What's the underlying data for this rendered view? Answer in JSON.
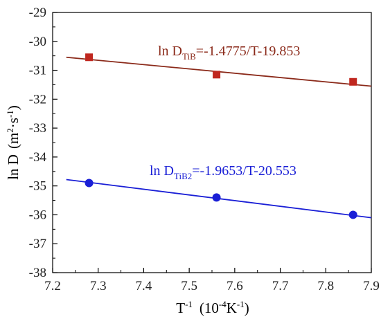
{
  "chart_data": {
    "type": "scatter",
    "title": "",
    "xlabel": {
      "base": "T",
      "sup": "-1",
      "units_pre": "(10",
      "units_sup": "-4",
      "units_post": "K",
      "units_sup2": "-1",
      "units_end": ")"
    },
    "ylabel": {
      "pre": "ln D",
      "units_pre": "(m",
      "units_sup": "2",
      "units_mid": "·s",
      "units_sup2": "-1",
      "units_end": ")"
    },
    "xlim": [
      7.2,
      7.9
    ],
    "ylim": [
      -38,
      -29
    ],
    "xticks": [
      7.2,
      7.3,
      7.4,
      7.5,
      7.6,
      7.7,
      7.8,
      7.9
    ],
    "xtick_labels": [
      "7.2",
      "7.3",
      "7.4",
      "7.5",
      "7.6",
      "7.7",
      "7.8",
      "7.9"
    ],
    "yticks": [
      -29,
      -30,
      -31,
      -32,
      -33,
      -34,
      -35,
      -36,
      -37,
      -38
    ],
    "ytick_labels": [
      "-29",
      "-30",
      "-31",
      "-32",
      "-33",
      "-34",
      "-35",
      "-36",
      "-37",
      "-38"
    ],
    "grid": false,
    "series": [
      {
        "name": "TiB",
        "marker": "square",
        "color": "#c0271f",
        "line_color": "#8b2a1a",
        "x": [
          7.28,
          7.56,
          7.86
        ],
        "y": [
          -30.55,
          -31.15,
          -31.4
        ],
        "fit_x": [
          7.23,
          7.9
        ],
        "fit_y": [
          -30.55,
          -31.55
        ]
      },
      {
        "name": "TiB2",
        "marker": "circle",
        "color": "#1a1fd6",
        "line_color": "#1a1fd6",
        "x": [
          7.28,
          7.56,
          7.86
        ],
        "y": [
          -34.9,
          -35.4,
          -36.0
        ],
        "fit_x": [
          7.23,
          7.9
        ],
        "fit_y": [
          -34.78,
          -36.1
        ]
      }
    ],
    "annotations": [
      {
        "series": "TiB",
        "pre": "ln D",
        "sub": "TiB",
        "post": "=-1.4775/T-19.853",
        "color": "#8b2a1a"
      },
      {
        "series": "TiB2",
        "pre": "ln D",
        "sub": "TiB2",
        "post": "=-1.9653/T-20.553",
        "color": "#1a1fd6"
      }
    ]
  }
}
